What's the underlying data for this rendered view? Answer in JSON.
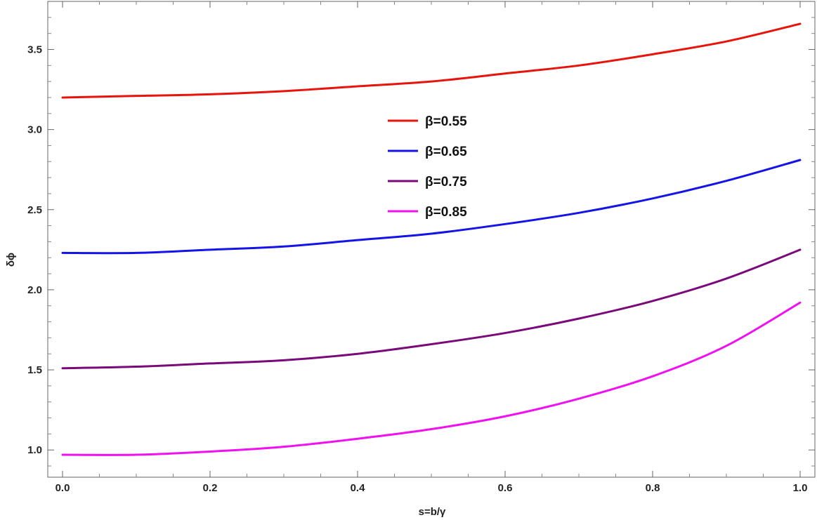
{
  "chart_data": {
    "type": "line",
    "title": "",
    "xlabel": "s=b/γ",
    "ylabel": "δϕ",
    "xlim": [
      -0.02,
      1.02
    ],
    "ylim": [
      0.83,
      3.8
    ],
    "xticks": [
      0.0,
      0.2,
      0.4,
      0.6,
      0.8,
      1.0
    ],
    "xtick_labels": [
      "0.0",
      "0.2",
      "0.4",
      "0.6",
      "0.8",
      "1.0"
    ],
    "yticks": [
      1.0,
      1.5,
      2.0,
      2.5,
      3.0,
      3.5
    ],
    "ytick_labels": [
      "1.0",
      "1.5",
      "2.0",
      "2.5",
      "3.0",
      "3.5"
    ],
    "grid": false,
    "legend_position": "center",
    "x": [
      0.0,
      0.1,
      0.2,
      0.3,
      0.4,
      0.5,
      0.6,
      0.7,
      0.8,
      0.9,
      1.0
    ],
    "series": [
      {
        "name": "β=0.55",
        "color": "#e8140c",
        "values": [
          3.2,
          3.21,
          3.22,
          3.24,
          3.27,
          3.3,
          3.35,
          3.4,
          3.47,
          3.55,
          3.66
        ]
      },
      {
        "name": "β=0.65",
        "color": "#1414e8",
        "values": [
          2.23,
          2.23,
          2.25,
          2.27,
          2.31,
          2.35,
          2.41,
          2.48,
          2.57,
          2.68,
          2.81
        ]
      },
      {
        "name": "β=0.75",
        "color": "#7a0a7a",
        "values": [
          1.51,
          1.52,
          1.54,
          1.56,
          1.6,
          1.66,
          1.73,
          1.82,
          1.93,
          2.07,
          2.25
        ]
      },
      {
        "name": "β=0.85",
        "color": "#f010f0",
        "values": [
          0.97,
          0.97,
          0.99,
          1.02,
          1.07,
          1.13,
          1.21,
          1.32,
          1.46,
          1.65,
          1.92
        ]
      }
    ]
  }
}
